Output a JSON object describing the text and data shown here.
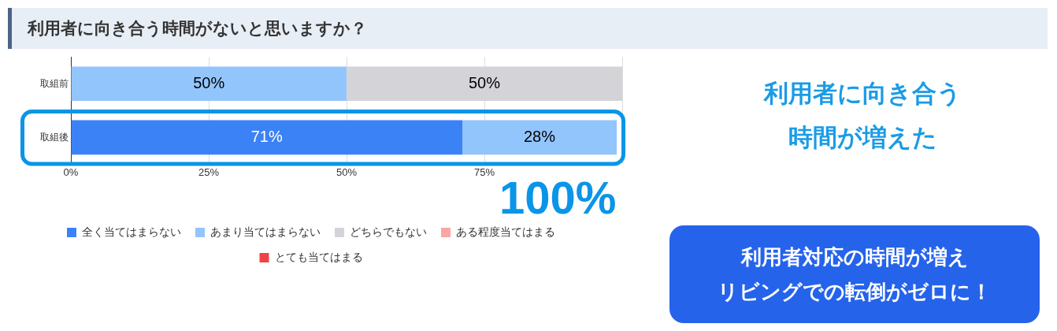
{
  "chart_data": {
    "type": "bar",
    "orientation": "horizontal",
    "stacked": true,
    "title": "利用者に向き合う時間がないと思いますか？",
    "categories": [
      "取組前",
      "取組後"
    ],
    "series": [
      {
        "name": "全く当てはまらない",
        "color": "#3b82f6",
        "values": [
          0,
          71
        ],
        "value_labels": [
          null,
          "71%"
        ]
      },
      {
        "name": "あまり当てはまらない",
        "color": "#93c5fd",
        "values": [
          50,
          28
        ],
        "value_labels": [
          "50%",
          "28%"
        ]
      },
      {
        "name": "どちらでもない",
        "color": "#d4d4d8",
        "values": [
          50,
          0
        ],
        "value_labels": [
          "50%",
          null
        ]
      },
      {
        "name": "ある程度当てはまる",
        "color": "#fca5a5",
        "values": [
          0,
          0
        ],
        "value_labels": [
          null,
          null
        ]
      },
      {
        "name": "とても当てはまる",
        "color": "#ef4444",
        "values": [
          0,
          0
        ],
        "value_labels": [
          null,
          null
        ]
      }
    ],
    "xlim": [
      0,
      100
    ],
    "xticks": [
      {
        "value": 0,
        "label": "0%"
      },
      {
        "value": 25,
        "label": "25%"
      },
      {
        "value": 50,
        "label": "50%"
      },
      {
        "value": 75,
        "label": "75%"
      },
      {
        "value": 100,
        "label": null
      }
    ],
    "grid": "x",
    "legend": "bottom",
    "annotations": [
      "利用者に向き合う",
      "時間が増えた",
      "100%",
      "利用者対応の時間が増え",
      "リビングでの転倒がゼロに！"
    ]
  }
}
